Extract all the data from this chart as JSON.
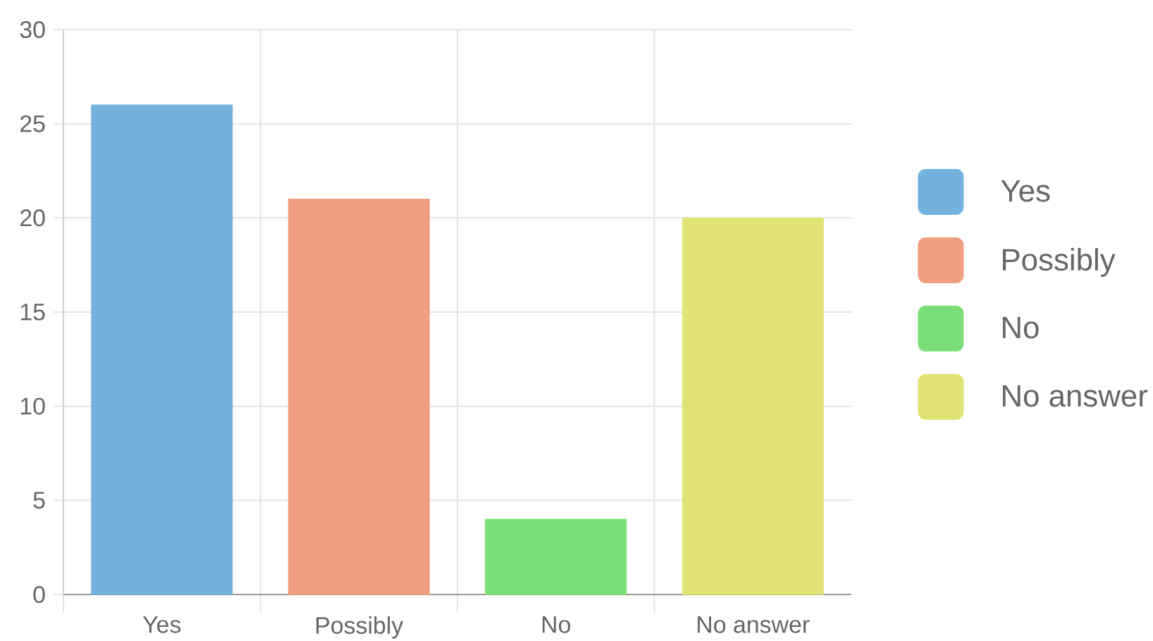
{
  "chart_data": {
    "type": "bar",
    "categories": [
      "Yes",
      "Possibly",
      "No",
      "No answer"
    ],
    "series": [
      {
        "name": "Yes",
        "color": "#72b2dc",
        "values": [
          26,
          null,
          null,
          null
        ]
      },
      {
        "name": "Possibly",
        "color": "#f09e82",
        "values": [
          null,
          21,
          null,
          null
        ]
      },
      {
        "name": "No",
        "color": "#7adf78",
        "values": [
          null,
          null,
          4,
          null
        ]
      },
      {
        "name": "No answer",
        "color": "#e1e375",
        "values": [
          null,
          null,
          null,
          20
        ]
      }
    ],
    "ylim": [
      0,
      30
    ],
    "yticks": [
      0,
      5,
      10,
      15,
      20,
      25,
      30
    ],
    "grid": true,
    "legend": "right"
  }
}
